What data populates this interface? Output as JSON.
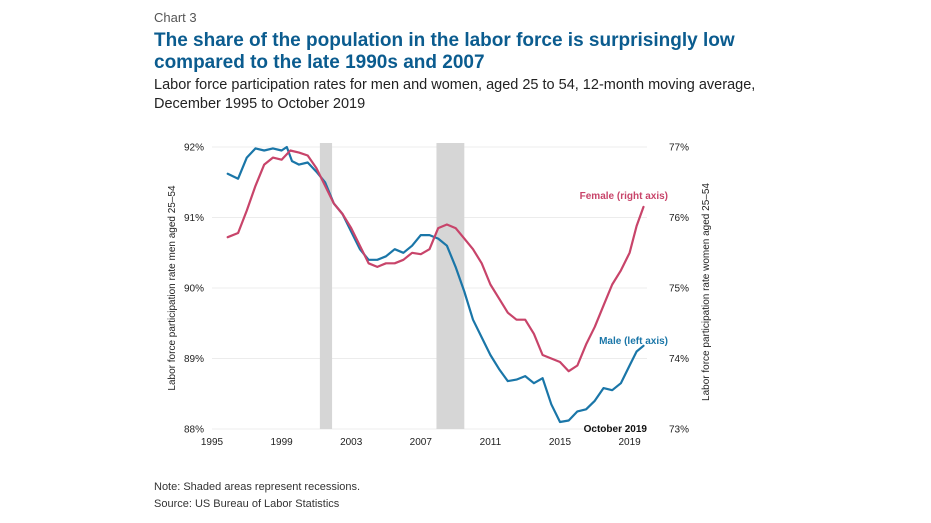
{
  "header": {
    "eyebrow": "Chart 3",
    "title": "The share of the population in the labor force is surprisingly low compared to the late 1990s and 2007",
    "subtitle": "Labor force participation rates for men and women, aged 25 to 54, 12-month moving average, December 1995 to October 2019"
  },
  "footer": {
    "note": "Note: Shaded areas represent recessions.",
    "source": "Source: US Bureau of Labor Statistics"
  },
  "colors": {
    "male": "#1a76a8",
    "female": "#c8446a",
    "recession": "#d6d6d6",
    "grid": "#ececec"
  },
  "chart_data": {
    "type": "line",
    "xlim": [
      1995,
      2020
    ],
    "x_ticks": [
      1995,
      1999,
      2003,
      2007,
      2011,
      2015,
      2019
    ],
    "ylabel_left": "Labor force participation rate men aged 25–54",
    "ylabel_right": "Labor force participation rate women aged 25–54",
    "ylim_left": [
      88,
      92
    ],
    "ylim_right": [
      73,
      77
    ],
    "y_ticks_left": [
      "88%",
      "89%",
      "90%",
      "91%",
      "92%"
    ],
    "y_ticks_right": [
      "73%",
      "74%",
      "75%",
      "76%",
      "77%"
    ],
    "grid": "horizontal",
    "recessions": [
      [
        2001.2,
        2001.9
      ],
      [
        2007.9,
        2009.5
      ]
    ],
    "annotation": "October 2019",
    "series": [
      {
        "name": "Male (left axis)",
        "axis": "left",
        "x": [
          1995.9,
          1996.5,
          1997.0,
          1997.5,
          1998.0,
          1998.5,
          1999.0,
          1999.3,
          1999.6,
          2000.0,
          2000.5,
          2001.0,
          2001.5,
          2002.0,
          2002.5,
          2003.0,
          2003.5,
          2004.0,
          2004.5,
          2005.0,
          2005.5,
          2006.0,
          2006.5,
          2007.0,
          2007.5,
          2008.0,
          2008.5,
          2009.0,
          2009.5,
          2010.0,
          2010.5,
          2011.0,
          2011.5,
          2012.0,
          2012.5,
          2013.0,
          2013.5,
          2014.0,
          2014.5,
          2015.0,
          2015.5,
          2016.0,
          2016.5,
          2017.0,
          2017.5,
          2018.0,
          2018.5,
          2019.0,
          2019.4,
          2019.8
        ],
        "y": [
          91.62,
          91.55,
          91.85,
          91.98,
          91.95,
          91.98,
          91.95,
          92.0,
          91.8,
          91.75,
          91.78,
          91.65,
          91.5,
          91.2,
          91.05,
          90.8,
          90.55,
          90.4,
          90.4,
          90.45,
          90.55,
          90.5,
          90.6,
          90.75,
          90.75,
          90.7,
          90.6,
          90.3,
          89.95,
          89.55,
          89.3,
          89.05,
          88.85,
          88.68,
          88.7,
          88.75,
          88.65,
          88.72,
          88.35,
          88.1,
          88.12,
          88.25,
          88.28,
          88.4,
          88.58,
          88.55,
          88.65,
          88.9,
          89.1,
          89.18
        ]
      },
      {
        "name": "Female (right axis)",
        "axis": "right",
        "x": [
          1995.9,
          1996.5,
          1997.0,
          1997.5,
          1998.0,
          1998.5,
          1999.0,
          1999.5,
          2000.0,
          2000.5,
          2001.0,
          2001.5,
          2002.0,
          2002.5,
          2003.0,
          2003.5,
          2004.0,
          2004.5,
          2005.0,
          2005.5,
          2006.0,
          2006.5,
          2007.0,
          2007.5,
          2008.0,
          2008.5,
          2009.0,
          2009.5,
          2010.0,
          2010.5,
          2011.0,
          2011.5,
          2012.0,
          2012.5,
          2013.0,
          2013.5,
          2014.0,
          2014.5,
          2015.0,
          2015.5,
          2016.0,
          2016.5,
          2017.0,
          2017.5,
          2018.0,
          2018.5,
          2019.0,
          2019.4,
          2019.8
        ],
        "y": [
          75.72,
          75.78,
          76.1,
          76.45,
          76.75,
          76.85,
          76.82,
          76.95,
          76.92,
          76.88,
          76.7,
          76.45,
          76.2,
          76.05,
          75.85,
          75.6,
          75.35,
          75.3,
          75.35,
          75.35,
          75.4,
          75.5,
          75.48,
          75.55,
          75.85,
          75.9,
          75.85,
          75.7,
          75.55,
          75.35,
          75.05,
          74.85,
          74.65,
          74.55,
          74.55,
          74.35,
          74.05,
          74.0,
          73.95,
          73.82,
          73.9,
          74.2,
          74.45,
          74.75,
          75.05,
          75.25,
          75.5,
          75.88,
          76.15
        ]
      }
    ]
  }
}
